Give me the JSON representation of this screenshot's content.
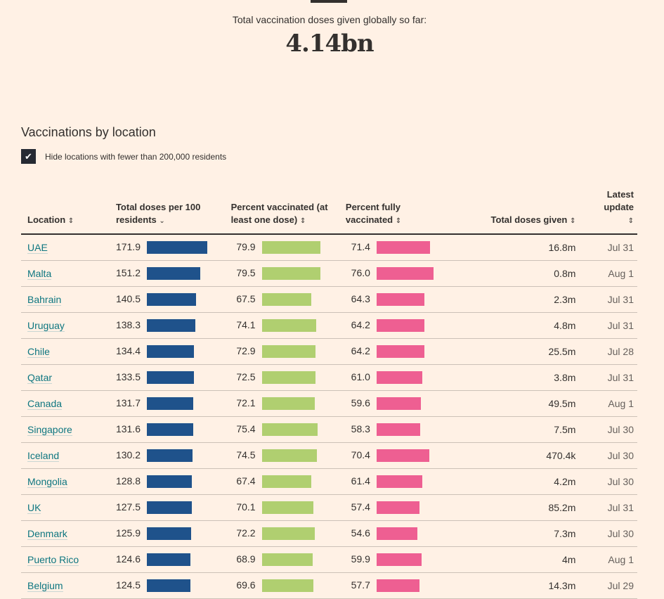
{
  "header": {
    "total_label": "Total vaccination doses given globally so far:",
    "total_value": "4.14bn"
  },
  "section": {
    "title": "Vaccinations by location",
    "filter_label": "Hide locations with fewer than 200,000 residents",
    "filter_checked": true
  },
  "colors": {
    "doses": "#1f528b",
    "one_dose": "#b0cf70",
    "fully": "#ee5f92"
  },
  "columns": [
    "Location",
    "Total doses per 100 residents",
    "Percent vaccinated (at least one dose)",
    "Percent fully vaccinated",
    "Total doses given",
    "Latest update"
  ],
  "rows": [
    [
      "UAE",
      "171.9",
      "79.9",
      "71.4",
      "16.8m",
      "Jul 31"
    ],
    [
      "Malta",
      "151.2",
      "79.5",
      "76.0",
      "0.8m",
      "Aug 1"
    ],
    [
      "Bahrain",
      "140.5",
      "67.5",
      "64.3",
      "2.3m",
      "Jul 31"
    ],
    [
      "Uruguay",
      "138.3",
      "74.1",
      "64.2",
      "4.8m",
      "Jul 31"
    ],
    [
      "Chile",
      "134.4",
      "72.9",
      "64.2",
      "25.5m",
      "Jul 28"
    ],
    [
      "Qatar",
      "133.5",
      "72.5",
      "61.0",
      "3.8m",
      "Jul 31"
    ],
    [
      "Canada",
      "131.7",
      "72.1",
      "59.6",
      "49.5m",
      "Aug 1"
    ],
    [
      "Singapore",
      "131.6",
      "75.4",
      "58.3",
      "7.5m",
      "Jul 30"
    ],
    [
      "Iceland",
      "130.2",
      "74.5",
      "70.4",
      "470.4k",
      "Jul 30"
    ],
    [
      "Mongolia",
      "128.8",
      "67.4",
      "61.4",
      "4.2m",
      "Jul 30"
    ],
    [
      "UK",
      "127.5",
      "70.1",
      "57.4",
      "85.2m",
      "Jul 31"
    ],
    [
      "Denmark",
      "125.9",
      "72.2",
      "54.6",
      "7.3m",
      "Jul 30"
    ],
    [
      "Puerto Rico",
      "124.6",
      "68.9",
      "59.9",
      "4m",
      "Aug 1"
    ],
    [
      "Belgium",
      "124.5",
      "69.6",
      "57.7",
      "14.3m",
      "Jul 29"
    ]
  ]
}
